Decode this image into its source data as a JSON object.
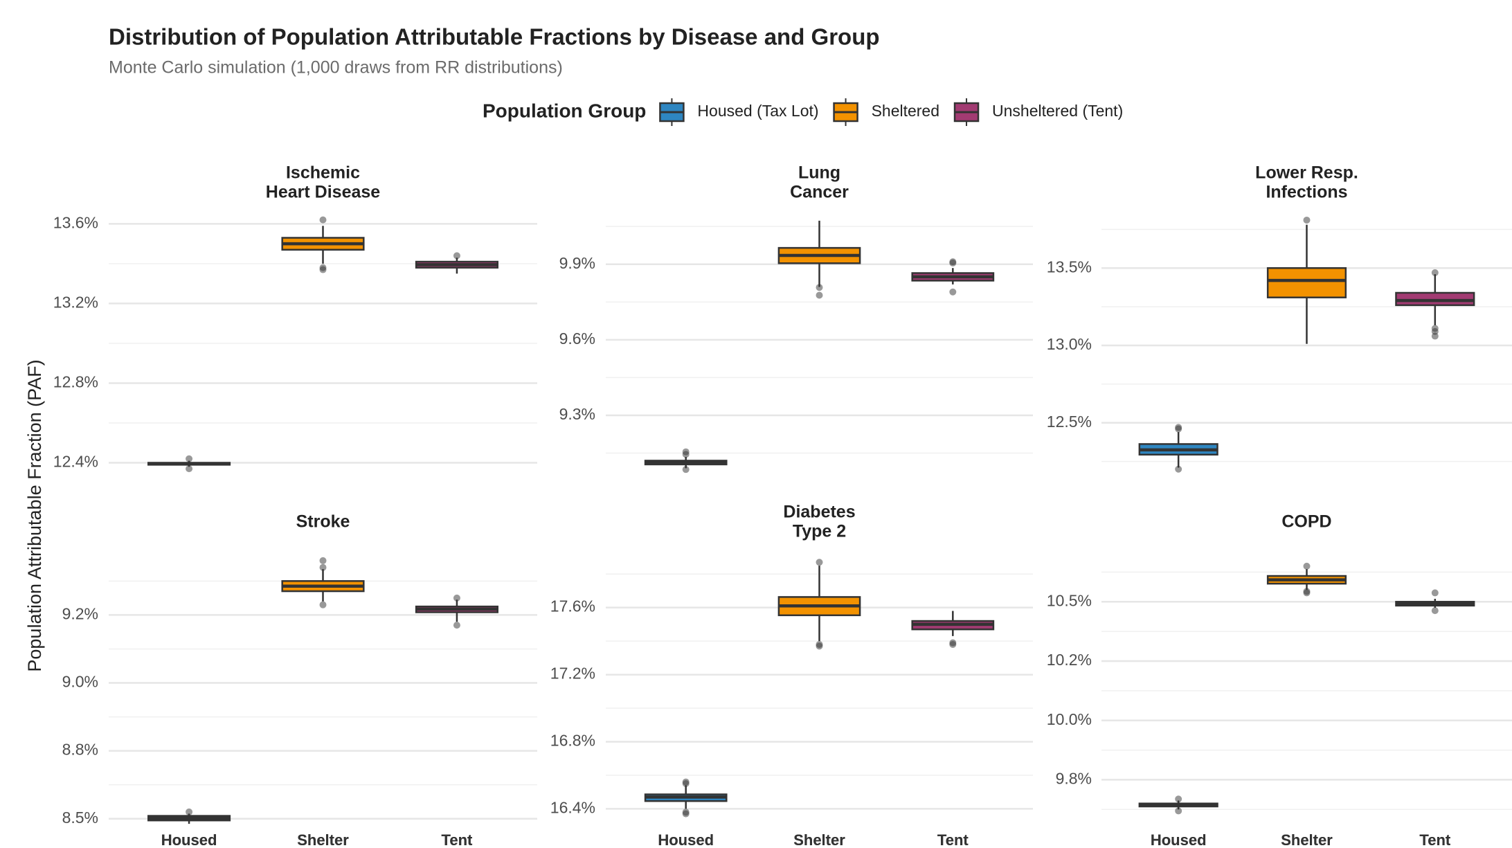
{
  "chart_data": {
    "type": "box",
    "title": "Distribution of Population Attributable Fractions by Disease and Group",
    "subtitle": "Monte Carlo simulation (1,000 draws from RR distributions)",
    "y_label": "Population Attributable Fraction (PAF)",
    "legend_title": "Population Group",
    "legend_position": "top",
    "grid": true,
    "categories": [
      "Housed",
      "Shelter",
      "Tent"
    ],
    "series": [
      {
        "name": "Housed (Tax Lot)",
        "color": "#2e86c1"
      },
      {
        "name": "Sheltered",
        "color": "#f39200"
      },
      {
        "name": "Unsheltered (Tent)",
        "color": "#a23b72"
      }
    ],
    "panels": [
      {
        "title": [
          "Ischemic",
          "Heart Disease"
        ],
        "ylim": [
          12.36,
          13.65
        ],
        "yticks": [
          {
            "value": 12.4,
            "label": "12.4%"
          },
          {
            "value": 12.8,
            "label": "12.8%"
          },
          {
            "value": 13.2,
            "label": "13.2%"
          },
          {
            "value": 13.6,
            "label": "13.6%"
          }
        ],
        "boxes": [
          {
            "whislo": 12.38,
            "q1": 12.39,
            "med": 12.395,
            "q3": 12.4,
            "whishi": 12.41,
            "fliers": [
              12.42,
              12.37
            ]
          },
          {
            "whislo": 13.4,
            "q1": 13.47,
            "med": 13.5,
            "q3": 13.53,
            "whishi": 13.59,
            "fliers": [
              13.62,
              13.38,
              13.37
            ]
          },
          {
            "whislo": 13.35,
            "q1": 13.38,
            "med": 13.395,
            "q3": 13.41,
            "whishi": 13.43,
            "fliers": [
              13.44
            ]
          }
        ]
      },
      {
        "title": [
          "Lung",
          "Cancer"
        ],
        "ylim": [
          9.08,
          10.1
        ],
        "yticks": [
          {
            "value": 9.3,
            "label": "9.3%"
          },
          {
            "value": 9.6,
            "label": "9.6%"
          },
          {
            "value": 9.9,
            "label": "9.9%"
          }
        ],
        "boxes": [
          {
            "whislo": 9.09,
            "q1": 9.105,
            "med": 9.113,
            "q3": 9.12,
            "whishi": 9.135,
            "fliers": [
              9.145,
              9.155,
              9.085
            ]
          },
          {
            "whislo": 9.81,
            "q1": 9.904,
            "med": 9.935,
            "q3": 9.965,
            "whishi": 10.073,
            "fliers": [
              9.808,
              9.777
            ]
          },
          {
            "whislo": 9.82,
            "q1": 9.835,
            "med": 9.85,
            "q3": 9.865,
            "whishi": 9.885,
            "fliers": [
              9.91,
              9.905,
              9.79
            ]
          }
        ]
      },
      {
        "title": [
          "Lower Resp.",
          "Infections"
        ],
        "ylim": [
          12.19,
          13.85
        ],
        "yticks": [
          {
            "value": 12.5,
            "label": "12.5%"
          },
          {
            "value": 13.0,
            "label": "13.0%"
          },
          {
            "value": 13.5,
            "label": "13.5%"
          }
        ],
        "boxes": [
          {
            "whislo": 12.21,
            "q1": 12.294,
            "med": 12.325,
            "q3": 12.3625,
            "whishi": 12.44,
            "fliers": [
              12.47,
              12.46,
              12.2
            ]
          },
          {
            "whislo": 13.01,
            "q1": 13.31,
            "med": 13.42,
            "q3": 13.5,
            "whishi": 13.78,
            "fliers": [
              13.81
            ]
          },
          {
            "whislo": 13.13,
            "q1": 13.26,
            "med": 13.29,
            "q3": 13.34,
            "whishi": 13.46,
            "fliers": [
              13.47,
              13.11,
              13.09,
              13.06
            ]
          }
        ]
      },
      {
        "title": [
          "Stroke"
        ],
        "ylim": [
          8.525,
          9.32
        ],
        "yticks": [
          {
            "value": 8.55,
            "label": "8.5%"
          },
          {
            "value": 8.75,
            "label": "8.8%"
          },
          {
            "value": 8.95,
            "label": "9.0%"
          },
          {
            "value": 9.15,
            "label": "9.2%"
          }
        ],
        "boxes": [
          {
            "whislo": 8.535,
            "q1": 8.545,
            "med": 8.552,
            "q3": 8.5585,
            "whishi": 8.565,
            "fliers": [
              8.57
            ]
          },
          {
            "whislo": 9.19,
            "q1": 9.22,
            "med": 9.235,
            "q3": 9.25,
            "whishi": 9.285,
            "fliers": [
              9.29,
              9.31,
              9.18
            ]
          },
          {
            "whislo": 9.13,
            "q1": 9.158,
            "med": 9.167,
            "q3": 9.175,
            "whishi": 9.195,
            "fliers": [
              9.2,
              9.12
            ]
          }
        ]
      },
      {
        "title": [
          "Diabetes",
          "Type 2"
        ],
        "ylim": [
          16.29,
          17.9
        ],
        "yticks": [
          {
            "value": 16.4,
            "label": "16.4%"
          },
          {
            "value": 16.8,
            "label": "16.8%"
          },
          {
            "value": 17.2,
            "label": "17.2%"
          },
          {
            "value": 17.6,
            "label": "17.6%"
          }
        ],
        "boxes": [
          {
            "whislo": 16.4,
            "q1": 16.446,
            "med": 16.47,
            "q3": 16.486,
            "whishi": 16.54,
            "fliers": [
              16.55,
              16.56,
              16.38,
              16.37
            ]
          },
          {
            "whislo": 17.4,
            "q1": 17.554,
            "med": 17.61,
            "q3": 17.663,
            "whishi": 17.85,
            "fliers": [
              17.87,
              17.38,
              17.37
            ]
          },
          {
            "whislo": 17.43,
            "q1": 17.47,
            "med": 17.5,
            "q3": 17.52,
            "whishi": 17.58,
            "fliers": [
              17.39,
              17.38
            ]
          }
        ]
      },
      {
        "title": [
          "COPD"
        ],
        "ylim": [
          9.69,
          10.6
        ],
        "yticks": [
          {
            "value": 9.85,
            "label": "9.8%"
          },
          {
            "value": 10.05,
            "label": "10.0%"
          },
          {
            "value": 10.25,
            "label": "10.2%"
          },
          {
            "value": 10.45,
            "label": "10.5%"
          }
        ],
        "boxes": [
          {
            "whislo": 9.75,
            "q1": 9.76,
            "med": 9.765,
            "q3": 9.77,
            "whishi": 9.78,
            "fliers": [
              9.785,
              9.745
            ]
          },
          {
            "whislo": 10.49,
            "q1": 10.511,
            "med": 10.524,
            "q3": 10.537,
            "whishi": 10.56,
            "fliers": [
              10.57,
              10.485,
              10.48
            ]
          },
          {
            "whislo": 10.43,
            "q1": 10.437,
            "med": 10.444,
            "q3": 10.45,
            "whishi": 10.46,
            "fliers": [
              10.48,
              10.42
            ]
          }
        ]
      }
    ]
  }
}
